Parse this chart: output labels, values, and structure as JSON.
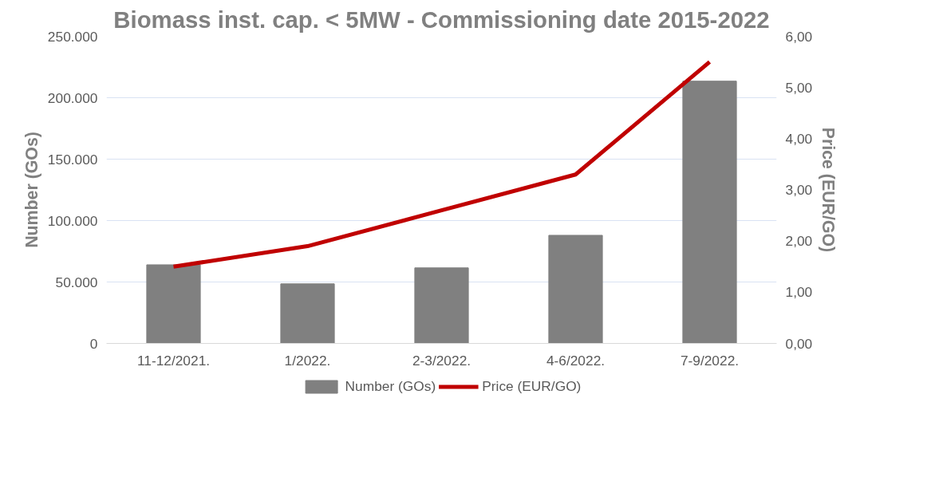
{
  "chart_data": {
    "type": "bar",
    "title": "Biomass inst. cap. < 5MW - Commissioning date 2015-2022",
    "ylabel": "Number (GOs)",
    "y2label": "Price (EUR/GO)",
    "categories": [
      "11-12/2021.",
      "1/2022.",
      "2-3/2022.",
      "4-6/2022.",
      "7-9/2022."
    ],
    "series": [
      {
        "name": "Number (GOs)",
        "color": "#808080",
        "values": [
          64000,
          48500,
          61500,
          88000,
          213500
        ]
      },
      {
        "name": "Price (EUR/GO)",
        "type": "line",
        "axis": "y2",
        "color": "#c00000",
        "values": [
          1.5,
          1.9,
          2.6,
          3.3,
          5.5
        ]
      }
    ],
    "ylim": [
      0,
      250000
    ],
    "yticks": [
      {
        "value": 0,
        "label": "0"
      },
      {
        "value": 50000,
        "label": "50.000"
      },
      {
        "value": 100000,
        "label": "100.000"
      },
      {
        "value": 150000,
        "label": "150.000"
      },
      {
        "value": 200000,
        "label": "200.000"
      },
      {
        "value": 250000,
        "label": "250.000"
      }
    ],
    "y2lim": [
      0,
      6
    ],
    "y2ticks": [
      {
        "value": 0,
        "label": "0,00"
      },
      {
        "value": 1,
        "label": "1,00"
      },
      {
        "value": 2,
        "label": "2,00"
      },
      {
        "value": 3,
        "label": "3,00"
      },
      {
        "value": 4,
        "label": "4,00"
      },
      {
        "value": 5,
        "label": "5,00"
      },
      {
        "value": 6,
        "label": "6,00"
      }
    ],
    "grid": "y",
    "legend": "bottom",
    "marker": "none",
    "line_style": "solid"
  }
}
